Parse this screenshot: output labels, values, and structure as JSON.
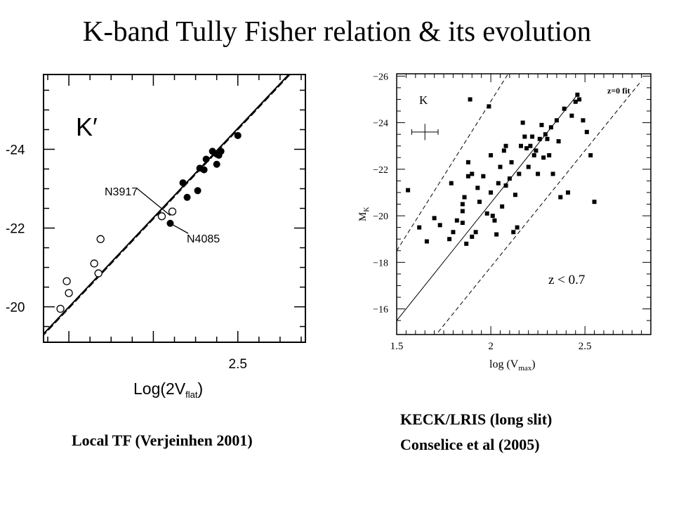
{
  "title": "K-band Tully Fisher relation & its evolution",
  "captions": {
    "left": "Local  TF (Verjeinhen 2001)",
    "right_line1": "KECK/LRIS (long slit)",
    "right_line2": "Conselice et al (2005)"
  },
  "chart_data": [
    {
      "type": "scatter",
      "panel": "left",
      "band_label": "K′",
      "xlabel_main": "Log(2V",
      "xlabel_sub": "flat",
      "xlabel_close": ")",
      "xlim": [
        2.04,
        2.66
      ],
      "ylim": [
        -19.1,
        -25.9
      ],
      "x_ticks": [
        {
          "value": 2.5,
          "label": "2.5"
        }
      ],
      "y_ticks": [
        {
          "value": -24,
          "label": "-24"
        },
        {
          "value": -22,
          "label": "-22"
        },
        {
          "value": -20,
          "label": "-20"
        }
      ],
      "fit_line": [
        [
          2.0,
          -18.86
        ],
        [
          2.7,
          -26.8
        ]
      ],
      "annotations": [
        {
          "label": "N3917",
          "point": [
            2.34,
            -22.32
          ]
        },
        {
          "label": "N4085",
          "point": [
            2.34,
            -22.12
          ]
        }
      ],
      "series": [
        {
          "marker": "filled-circle",
          "points": [
            [
              2.34,
              -22.12
            ],
            [
              2.37,
              -23.15
            ],
            [
              2.38,
              -22.78
            ],
            [
              2.405,
              -22.95
            ],
            [
              2.41,
              -23.52
            ],
            [
              2.42,
              -23.48
            ],
            [
              2.425,
              -23.75
            ],
            [
              2.44,
              -23.95
            ],
            [
              2.45,
              -23.88
            ],
            [
              2.455,
              -23.85
            ],
            [
              2.45,
              -23.62
            ],
            [
              2.46,
              -23.95
            ],
            [
              2.5,
              -24.35
            ]
          ]
        },
        {
          "marker": "open-circle",
          "points": [
            [
              2.08,
              -19.95
            ],
            [
              2.095,
              -20.65
            ],
            [
              2.1,
              -20.35
            ],
            [
              2.16,
              -21.1
            ],
            [
              2.17,
              -20.85
            ],
            [
              2.175,
              -21.72
            ],
            [
              2.32,
              -22.3
            ],
            [
              2.345,
              -22.42
            ]
          ]
        }
      ]
    },
    {
      "type": "scatter",
      "panel": "right",
      "band_label": "K",
      "fit_label": "z=0 fit",
      "redshift_label": "z  <  0.7",
      "xlabel_main": "log (V",
      "xlabel_sub": "max",
      "xlabel_close": ")",
      "ylabel_main": "M",
      "ylabel_sub": "K",
      "xlim": [
        1.5,
        2.85
      ],
      "ylim": [
        -14.9,
        -26.1
      ],
      "x_ticks": [
        {
          "value": 1.5,
          "label": "1.5"
        },
        {
          "value": 2,
          "label": "2"
        },
        {
          "value": 2.5,
          "label": "2.5"
        }
      ],
      "y_ticks": [
        {
          "value": -26,
          "label": "−26"
        },
        {
          "value": -24,
          "label": "−24"
        },
        {
          "value": -22,
          "label": "−22"
        },
        {
          "value": -20,
          "label": "−20"
        },
        {
          "value": -18,
          "label": "−18"
        },
        {
          "value": -16,
          "label": "−16"
        }
      ],
      "fit_line": [
        [
          1.5,
          -15.5
        ],
        [
          2.46,
          -25.2
        ]
      ],
      "dashed_upper": [
        [
          1.5,
          -18.5
        ],
        [
          2.1,
          -26.2
        ]
      ],
      "dashed_lower": [
        [
          1.72,
          -15.0
        ],
        [
          2.8,
          -25.8
        ]
      ],
      "error_bar": {
        "x": 1.65,
        "y": -23.6,
        "xerr": 0.07,
        "yerr": 0.35
      },
      "series": [
        {
          "marker": "filled-square",
          "points": [
            [
              1.56,
              -21.1
            ],
            [
              1.62,
              -19.5
            ],
            [
              1.66,
              -18.9
            ],
            [
              1.7,
              -19.9
            ],
            [
              1.73,
              -19.6
            ],
            [
              1.78,
              -19.0
            ],
            [
              1.79,
              -21.4
            ],
            [
              1.8,
              -19.3
            ],
            [
              1.82,
              -19.8
            ],
            [
              1.85,
              -20.5
            ],
            [
              1.85,
              -20.2
            ],
            [
              1.85,
              -19.7
            ],
            [
              1.86,
              -20.8
            ],
            [
              1.87,
              -18.8
            ],
            [
              1.88,
              -21.7
            ],
            [
              1.88,
              -22.3
            ],
            [
              1.89,
              -25.0
            ],
            [
              1.9,
              -21.8
            ],
            [
              1.9,
              -19.1
            ],
            [
              1.92,
              -19.3
            ],
            [
              1.93,
              -21.2
            ],
            [
              1.94,
              -20.6
            ],
            [
              1.96,
              -21.7
            ],
            [
              1.98,
              -20.1
            ],
            [
              1.99,
              -24.7
            ],
            [
              2.0,
              -22.6
            ],
            [
              2.0,
              -21.0
            ],
            [
              2.01,
              -20.0
            ],
            [
              2.02,
              -19.8
            ],
            [
              2.03,
              -19.2
            ],
            [
              2.04,
              -21.4
            ],
            [
              2.05,
              -22.1
            ],
            [
              2.06,
              -20.4
            ],
            [
              2.07,
              -22.8
            ],
            [
              2.08,
              -23.0
            ],
            [
              2.08,
              -21.3
            ],
            [
              2.1,
              -21.6
            ],
            [
              2.11,
              -22.3
            ],
            [
              2.12,
              -19.3
            ],
            [
              2.13,
              -20.9
            ],
            [
              2.14,
              -19.5
            ],
            [
              2.15,
              -21.8
            ],
            [
              2.16,
              -23.0
            ],
            [
              2.17,
              -24.0
            ],
            [
              2.18,
              -23.4
            ],
            [
              2.19,
              -22.9
            ],
            [
              2.2,
              -22.1
            ],
            [
              2.21,
              -23.0
            ],
            [
              2.22,
              -23.4
            ],
            [
              2.23,
              -22.6
            ],
            [
              2.24,
              -22.8
            ],
            [
              2.25,
              -21.8
            ],
            [
              2.26,
              -23.3
            ],
            [
              2.27,
              -23.9
            ],
            [
              2.28,
              -22.5
            ],
            [
              2.29,
              -23.5
            ],
            [
              2.3,
              -23.3
            ],
            [
              2.31,
              -22.6
            ],
            [
              2.32,
              -23.8
            ],
            [
              2.33,
              -21.8
            ],
            [
              2.35,
              -24.1
            ],
            [
              2.36,
              -23.2
            ],
            [
              2.37,
              -20.8
            ],
            [
              2.39,
              -24.6
            ],
            [
              2.41,
              -21.0
            ],
            [
              2.43,
              -24.3
            ],
            [
              2.45,
              -24.9
            ],
            [
              2.46,
              -25.2
            ],
            [
              2.47,
              -25.0
            ],
            [
              2.49,
              -24.1
            ],
            [
              2.51,
              -23.6
            ],
            [
              2.53,
              -22.6
            ],
            [
              2.55,
              -20.6
            ]
          ]
        }
      ]
    }
  ]
}
